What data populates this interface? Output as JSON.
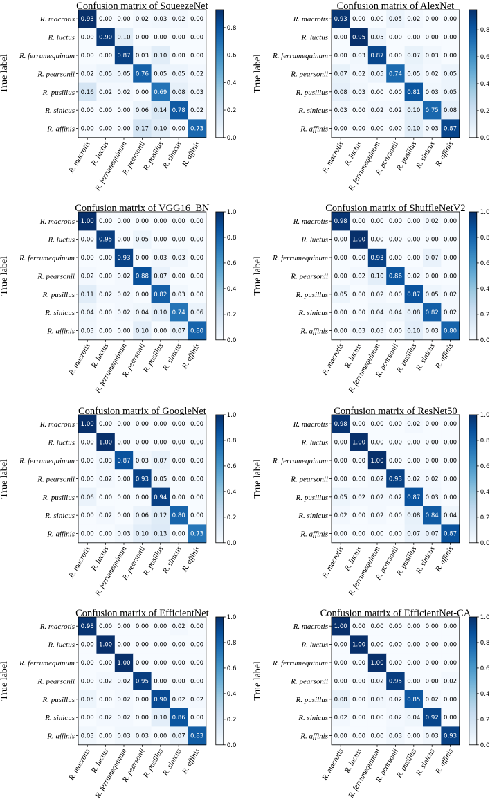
{
  "chart_data": [
    {
      "type": "heatmap",
      "title": "Confusion matrix of SqueezeNet",
      "ylabel": "True label",
      "row_labels": [
        "R. macrotis",
        "R. luctus",
        "R. ferrumequinum",
        "R. pearsonii",
        "R. pusillus",
        "R. sinicus",
        "R. affinis"
      ],
      "col_labels": [
        "R. macrotis",
        "R. luctus",
        "R. ferrumequinum",
        "R. pearsonii",
        "R. pusillus",
        "R. sinicus",
        "R. affinis"
      ],
      "colorbar_ticks": [
        "0.0",
        "0.2",
        "0.4",
        "0.6",
        "0.8"
      ],
      "colorbar_max": 0.93,
      "values": [
        [
          "0.93",
          "0.00",
          "0.00",
          "0.02",
          "0.03",
          "0.02",
          "0.00"
        ],
        [
          "0.00",
          "0.90",
          "0.10",
          "0.00",
          "0.00",
          "0.00",
          "0.00"
        ],
        [
          "0.00",
          "0.00",
          "0.87",
          "0.03",
          "0.10",
          "0.00",
          "0.00"
        ],
        [
          "0.02",
          "0.05",
          "0.05",
          "0.76",
          "0.05",
          "0.05",
          "0.02"
        ],
        [
          "0.16",
          "0.02",
          "0.02",
          "0.00",
          "0.69",
          "0.08",
          "0.03"
        ],
        [
          "0.00",
          "0.00",
          "0.00",
          "0.06",
          "0.14",
          "0.78",
          "0.02"
        ],
        [
          "0.00",
          "0.00",
          "0.00",
          "0.17",
          "0.10",
          "0.00",
          "0.73"
        ]
      ]
    },
    {
      "type": "heatmap",
      "title": "Confusion matrix of AlexNet",
      "ylabel": "True label",
      "row_labels": [
        "R. macrotis",
        "R. luctus",
        "R. ferrumequinum",
        "R. pearsonii",
        "R. pusillus",
        "R. sinicus",
        "R. affinis"
      ],
      "col_labels": [
        "R. macrotis",
        "R. luctus",
        "R. ferrumequinum",
        "R. pearsonii",
        "R. pusillus",
        "R. sinicus",
        "R. affinis"
      ],
      "colorbar_ticks": [
        "0.0",
        "0.2",
        "0.4",
        "0.6",
        "0.8"
      ],
      "colorbar_max": 0.95,
      "values": [
        [
          "0.93",
          "0.00",
          "0.00",
          "0.05",
          "0.02",
          "0.00",
          "0.00"
        ],
        [
          "0.00",
          "0.95",
          "0.05",
          "0.00",
          "0.00",
          "0.00",
          "0.00"
        ],
        [
          "0.00",
          "0.03",
          "0.87",
          "0.00",
          "0.07",
          "0.03",
          "0.00"
        ],
        [
          "0.07",
          "0.02",
          "0.05",
          "0.74",
          "0.05",
          "0.02",
          "0.05"
        ],
        [
          "0.08",
          "0.03",
          "0.00",
          "0.00",
          "0.81",
          "0.03",
          "0.05"
        ],
        [
          "0.03",
          "0.00",
          "0.02",
          "0.02",
          "0.10",
          "0.75",
          "0.08"
        ],
        [
          "0.00",
          "0.00",
          "0.00",
          "0.00",
          "0.10",
          "0.03",
          "0.87"
        ]
      ]
    },
    {
      "type": "heatmap",
      "title": "Confusion matrix of VGG16_BN",
      "ylabel": "True label",
      "row_labels": [
        "R. macrotis",
        "R. luctus",
        "R. ferrumequinum",
        "R. pearsonii",
        "R. pusillus",
        "R. sinicus",
        "R. affinis"
      ],
      "col_labels": [
        "R. macrotis",
        "R. luctus",
        "R. ferrumequinum",
        "R. pearsonii",
        "R. pusillus",
        "R. sinicus",
        "R. affinis"
      ],
      "colorbar_ticks": [
        "0.0",
        "0.2",
        "0.4",
        "0.6",
        "0.8",
        "1.0"
      ],
      "colorbar_max": 1.0,
      "values": [
        [
          "1.00",
          "0.00",
          "0.00",
          "0.00",
          "0.00",
          "0.00",
          "0.00"
        ],
        [
          "0.00",
          "0.95",
          "0.00",
          "0.05",
          "0.00",
          "0.00",
          "0.00"
        ],
        [
          "0.00",
          "0.00",
          "0.93",
          "0.00",
          "0.03",
          "0.03",
          "0.00"
        ],
        [
          "0.02",
          "0.00",
          "0.02",
          "0.88",
          "0.07",
          "0.00",
          "0.00"
        ],
        [
          "0.11",
          "0.02",
          "0.02",
          "0.00",
          "0.82",
          "0.03",
          "0.00"
        ],
        [
          "0.04",
          "0.00",
          "0.02",
          "0.04",
          "0.10",
          "0.74",
          "0.06"
        ],
        [
          "0.03",
          "0.00",
          "0.00",
          "0.10",
          "0.00",
          "0.07",
          "0.80"
        ]
      ]
    },
    {
      "type": "heatmap",
      "title": "Confusion matrix of ShuffleNetV2",
      "ylabel": "True label",
      "row_labels": [
        "R. macrotis",
        "R. luctus",
        "R. ferrumequinum",
        "R. pearsonii",
        "R. pusillus",
        "R. sinicus",
        "R. affinis"
      ],
      "col_labels": [
        "R. macrotis",
        "R. luctus",
        "R. ferrumequinum",
        "R. pearsonii",
        "R. pusillus",
        "R. sinicus",
        "R. affinis"
      ],
      "colorbar_ticks": [
        "0.0",
        "0.2",
        "0.4",
        "0.6",
        "0.8",
        "1.0"
      ],
      "colorbar_max": 1.0,
      "values": [
        [
          "0.98",
          "0.00",
          "0.00",
          "0.00",
          "0.00",
          "0.02",
          "0.00"
        ],
        [
          "0.00",
          "1.00",
          "0.00",
          "0.00",
          "0.00",
          "0.00",
          "0.00"
        ],
        [
          "0.00",
          "0.00",
          "0.93",
          "0.00",
          "0.00",
          "0.07",
          "0.00"
        ],
        [
          "0.00",
          "0.02",
          "0.10",
          "0.86",
          "0.02",
          "0.00",
          "0.00"
        ],
        [
          "0.05",
          "0.00",
          "0.02",
          "0.00",
          "0.87",
          "0.05",
          "0.02"
        ],
        [
          "0.00",
          "0.00",
          "0.04",
          "0.04",
          "0.08",
          "0.82",
          "0.02"
        ],
        [
          "0.00",
          "0.03",
          "0.03",
          "0.00",
          "0.10",
          "0.03",
          "0.80"
        ]
      ]
    },
    {
      "type": "heatmap",
      "title": "Confusion matrix of GoogleNet",
      "ylabel": "True label",
      "row_labels": [
        "R. macrotis",
        "R. luctus",
        "R. ferrumequinum",
        "R. pearsonii",
        "R. pusillus",
        "R. sinicus",
        "R. affinis"
      ],
      "col_labels": [
        "R. macrotis",
        "R. luctus",
        "R. ferrumequinum",
        "R. pearsonii",
        "R. pusillus",
        "R. sinicus",
        "R. affinis"
      ],
      "colorbar_ticks": [
        "0.0",
        "0.2",
        "0.4",
        "0.6",
        "0.8",
        "1.0"
      ],
      "colorbar_max": 1.0,
      "values": [
        [
          "1.00",
          "0.00",
          "0.00",
          "0.00",
          "0.00",
          "0.00",
          "0.00"
        ],
        [
          "0.00",
          "1.00",
          "0.00",
          "0.00",
          "0.00",
          "0.00",
          "0.00"
        ],
        [
          "0.00",
          "0.03",
          "0.87",
          "0.03",
          "0.07",
          "0.00",
          "0.00"
        ],
        [
          "0.00",
          "0.02",
          "0.00",
          "0.93",
          "0.05",
          "0.00",
          "0.00"
        ],
        [
          "0.06",
          "0.00",
          "0.00",
          "0.00",
          "0.94",
          "0.00",
          "0.00"
        ],
        [
          "0.00",
          "0.02",
          "0.00",
          "0.06",
          "0.12",
          "0.80",
          "0.00"
        ],
        [
          "0.00",
          "0.00",
          "0.03",
          "0.10",
          "0.13",
          "0.00",
          "0.73"
        ]
      ]
    },
    {
      "type": "heatmap",
      "title": "Confusion matrix of ResNet50",
      "ylabel": "True label",
      "row_labels": [
        "R. macrotis",
        "R. luctus",
        "R. ferrumequinum",
        "R. pearsonii",
        "R. pusillus",
        "R. sinicus",
        "R. affinis"
      ],
      "col_labels": [
        "R. macrotis",
        "R. luctus",
        "R. ferrumequinum",
        "R. pearsonii",
        "R. pusillus",
        "R. sinicus",
        "R. affinis"
      ],
      "colorbar_ticks": [
        "0.0",
        "0.2",
        "0.4",
        "0.6",
        "0.8",
        "1.0"
      ],
      "colorbar_max": 1.0,
      "values": [
        [
          "0.98",
          "0.00",
          "0.00",
          "0.00",
          "0.02",
          "0.00",
          "0.00"
        ],
        [
          "0.00",
          "1.00",
          "0.00",
          "0.00",
          "0.00",
          "0.00",
          "0.00"
        ],
        [
          "0.00",
          "0.00",
          "1.00",
          "0.00",
          "0.00",
          "0.00",
          "0.00"
        ],
        [
          "0.00",
          "0.00",
          "0.02",
          "0.93",
          "0.02",
          "0.02",
          "0.00"
        ],
        [
          "0.05",
          "0.02",
          "0.02",
          "0.02",
          "0.87",
          "0.03",
          "0.00"
        ],
        [
          "0.02",
          "0.00",
          "0.02",
          "0.00",
          "0.08",
          "0.84",
          "0.04"
        ],
        [
          "0.00",
          "0.00",
          "0.00",
          "0.00",
          "0.07",
          "0.07",
          "0.87"
        ]
      ]
    },
    {
      "type": "heatmap",
      "title": "Confusion matrix of EfficientNet",
      "ylabel": "True label",
      "row_labels": [
        "R. macrotis",
        "R. luctus",
        "R. ferrumequinum",
        "R. pearsonii",
        "R. pusillus",
        "R. sinicus",
        "R. affinis"
      ],
      "col_labels": [
        "R. macrotis",
        "R. luctus",
        "R. ferrumequinum",
        "R. pearsonii",
        "R. pusillus",
        "R. sinicus",
        "R. affinis"
      ],
      "colorbar_ticks": [
        "0.0",
        "0.2",
        "0.4",
        "0.6",
        "0.8",
        "1.0"
      ],
      "colorbar_max": 1.0,
      "values": [
        [
          "0.98",
          "0.00",
          "0.00",
          "0.00",
          "0.00",
          "0.02",
          "0.00"
        ],
        [
          "0.00",
          "1.00",
          "0.00",
          "0.00",
          "0.00",
          "0.00",
          "0.00"
        ],
        [
          "0.00",
          "0.00",
          "1.00",
          "0.00",
          "0.00",
          "0.00",
          "0.00"
        ],
        [
          "0.00",
          "0.02",
          "0.02",
          "0.95",
          "0.00",
          "0.00",
          "0.00"
        ],
        [
          "0.05",
          "0.00",
          "0.02",
          "0.00",
          "0.90",
          "0.02",
          "0.02"
        ],
        [
          "0.00",
          "0.02",
          "0.02",
          "0.00",
          "0.10",
          "0.86",
          "0.00"
        ],
        [
          "0.03",
          "0.00",
          "0.03",
          "0.03",
          "0.00",
          "0.07",
          "0.83"
        ]
      ]
    },
    {
      "type": "heatmap",
      "title": "Confusion matrix of EfficientNet-CA",
      "ylabel": "True label",
      "row_labels": [
        "R. macrotis",
        "R. luctus",
        "R. ferrumequinum",
        "R. pearsonii",
        "R. pusillus",
        "R. sinicus",
        "R. affinis"
      ],
      "col_labels": [
        "R. macrotis",
        "R. luctus",
        "R. ferrumequinum",
        "R. pearsonii",
        "R. pusillus",
        "R. sinicus",
        "R. affinis"
      ],
      "colorbar_ticks": [
        "0.0",
        "0.2",
        "0.4",
        "0.6",
        "0.8",
        "1.0"
      ],
      "colorbar_max": 1.0,
      "values": [
        [
          "1.00",
          "0.00",
          "0.00",
          "0.00",
          "0.00",
          "0.00",
          "0.00"
        ],
        [
          "0.00",
          "1.00",
          "0.00",
          "0.00",
          "0.00",
          "0.00",
          "0.00"
        ],
        [
          "0.00",
          "0.00",
          "1.00",
          "0.00",
          "0.00",
          "0.00",
          "0.00"
        ],
        [
          "0.00",
          "0.00",
          "0.02",
          "0.95",
          "0.00",
          "0.00",
          "0.02"
        ],
        [
          "0.08",
          "0.00",
          "0.03",
          "0.02",
          "0.85",
          "0.02",
          "0.00"
        ],
        [
          "0.02",
          "0.00",
          "0.00",
          "0.02",
          "0.04",
          "0.92",
          "0.00"
        ],
        [
          "0.00",
          "0.00",
          "0.00",
          "0.03",
          "0.00",
          "0.03",
          "0.93"
        ]
      ]
    }
  ]
}
